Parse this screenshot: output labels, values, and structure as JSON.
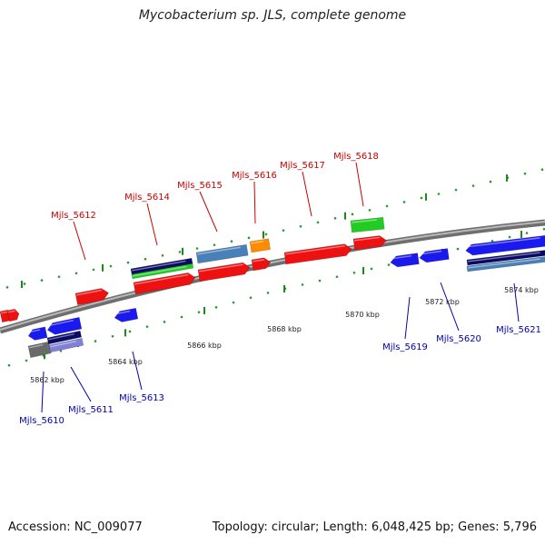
{
  "title": "Mycobacterium sp. JLS, complete genome",
  "footer": {
    "accession": "Accession: NC_009077",
    "summary": "Topology: circular; Length: 6,048,425 bp; Genes: 5,796"
  },
  "colors": {
    "backbone": "#8a8a8a",
    "tick": "#1a8a1a",
    "tick_dot": "#2a9a2a",
    "forward_label": "#cc0000",
    "reverse_label": "#0000aa",
    "red": "#ee1111",
    "blue": "#1a1aee",
    "navy": "#0a0a66",
    "green": "#22cc22",
    "steel": "#4a80b8",
    "orange": "#ff8c00",
    "gray": "#6a6a6a",
    "lavender": "#8080d8"
  },
  "ruler": {
    "labels": [
      "5862 kbp",
      "5864 kbp",
      "5866 kbp",
      "5868 kbp",
      "5870 kbp",
      "5872 kbp",
      "5874 kbp"
    ]
  },
  "forward_genes": [
    "Mjls_5612",
    "Mjls_5614",
    "Mjls_5615",
    "Mjls_5616",
    "Mjls_5617",
    "Mjls_5618"
  ],
  "reverse_genes": [
    "Mjls_5610",
    "Mjls_5611",
    "Mjls_5613",
    "Mjls_5619",
    "Mjls_5620",
    "Mjls_5621"
  ]
}
